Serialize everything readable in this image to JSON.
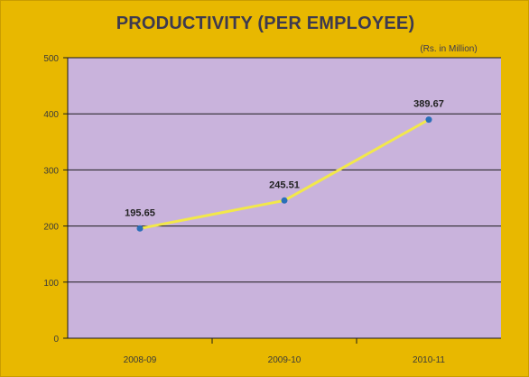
{
  "chart_data": {
    "type": "line",
    "title": "PRODUCTIVITY (PER EMPLOYEE)",
    "subtitle": "(Rs. in Million)",
    "categories": [
      "2008-09",
      "2009-10",
      "2010-11"
    ],
    "series": [
      {
        "values": [
          195.65,
          245.51,
          389.67
        ]
      }
    ],
    "y_ticks": [
      0,
      100,
      200,
      300,
      400,
      500
    ],
    "ylim": [
      0,
      500
    ],
    "grid": true,
    "legend": "none",
    "colors": {
      "background": "#e8b800",
      "plot_area": "#c9b3dc",
      "line": "#f2e84a",
      "marker": "#2a6fb8",
      "gridline": "#1a1a1a"
    }
  }
}
